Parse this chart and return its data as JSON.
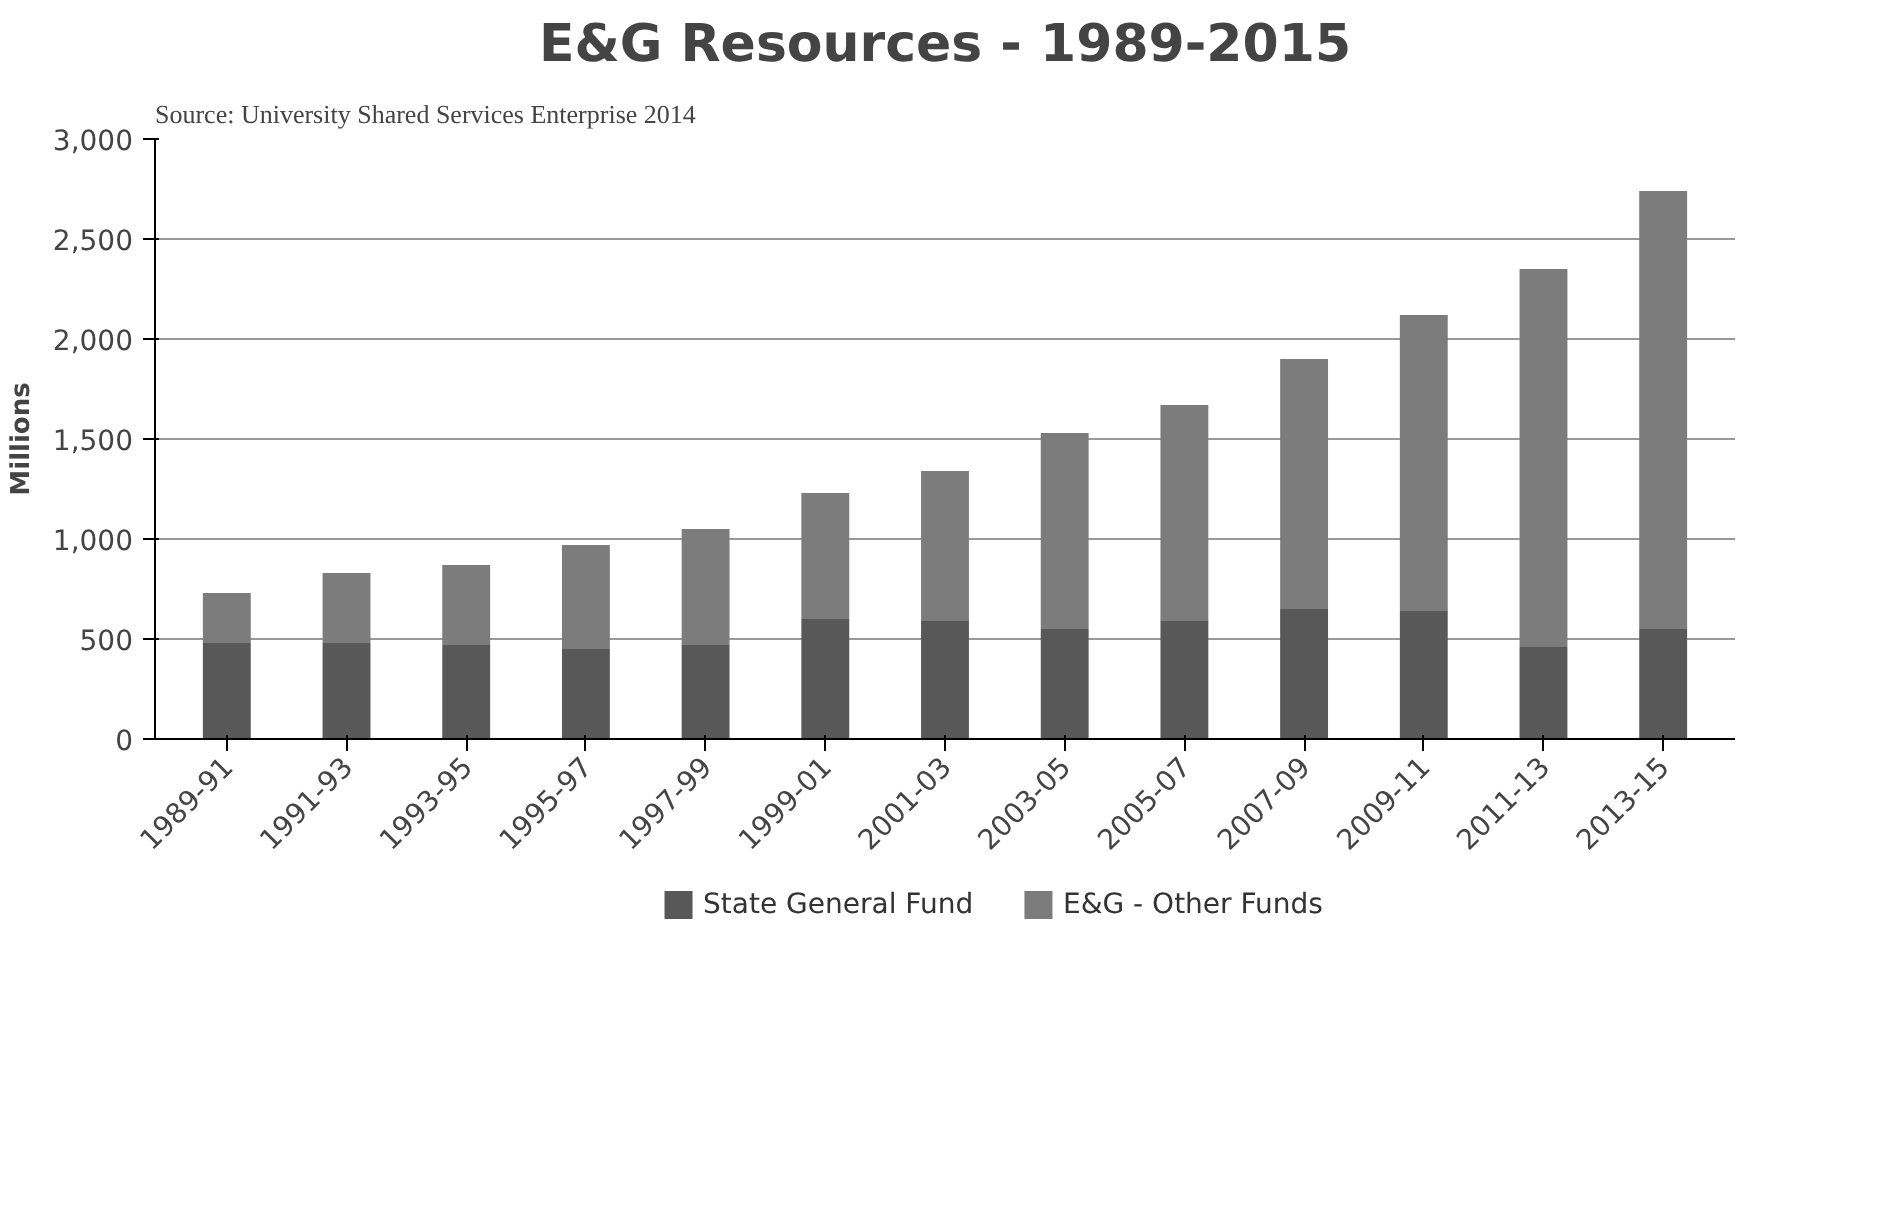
{
  "chart_data": {
    "type": "bar",
    "title": "E&G Resources - 1989-2015",
    "ylabel": "Millions",
    "stacked": true,
    "categories": [
      "1989-91",
      "1991-93",
      "1993-95",
      "1995-97",
      "1997-99",
      "1999-01",
      "2001-03",
      "2003-05",
      "2005-07",
      "2007-09",
      "2009-11",
      "2011-13",
      "2013-15"
    ],
    "series": [
      {
        "name": "State General Fund",
        "color": "#585858",
        "values": [
          480,
          480,
          470,
          450,
          470,
          600,
          590,
          550,
          590,
          650,
          640,
          460,
          550
        ]
      },
      {
        "name": "E&G - Other Funds",
        "color": "#7c7c7c",
        "values": [
          250,
          350,
          400,
          520,
          580,
          630,
          750,
          980,
          1080,
          1250,
          1480,
          1890,
          2190
        ]
      }
    ],
    "ylim": [
      0,
      3000
    ],
    "yticks": [
      {
        "value": 0,
        "label": "0"
      },
      {
        "value": 500,
        "label": "500"
      },
      {
        "value": 1000,
        "label": "1,000"
      },
      {
        "value": 1500,
        "label": "1,500"
      },
      {
        "value": 2000,
        "label": "2,000"
      },
      {
        "value": 2500,
        "label": "2,500"
      },
      {
        "value": 3000,
        "label": "3,000"
      }
    ],
    "grid": "y",
    "legend": "bottom",
    "annotations": [
      "Source: University Shared Services Enterprise 2014"
    ]
  }
}
